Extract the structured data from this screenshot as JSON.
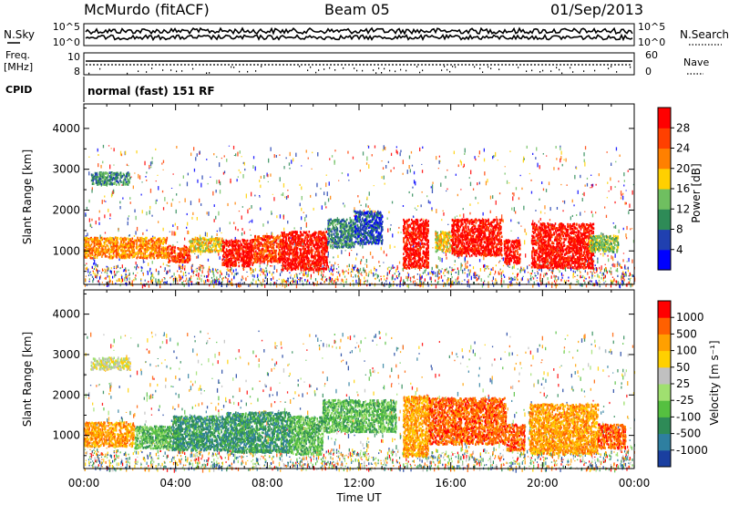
{
  "header": {
    "station": "McMurdo (fitACF)",
    "beam": "Beam 05",
    "date": "01/Sep/2013"
  },
  "top_panels": {
    "nsky_label": "N.Sky",
    "nsky_ticks": [
      "10^5",
      "10^0"
    ],
    "nsearch_label": "N.Search",
    "nsearch_ticks": [
      "10^5",
      "10^0"
    ],
    "freq_label_1": "Freq.",
    "freq_label_2": "[MHz]",
    "freq_ticks": [
      "10",
      "8"
    ],
    "nave_label": "Nave",
    "nave_ticks": [
      "60",
      "0"
    ],
    "cpid_label": "CPID",
    "cpid_value": "normal (fast) 151 RF"
  },
  "chart_data": [
    {
      "type": "heatmap",
      "name": "power",
      "ylabel": "Slant Range [km]",
      "ylim": [
        180,
        4600
      ],
      "yticks": [
        1000,
        2000,
        3000,
        4000
      ],
      "xlim": [
        0,
        24
      ],
      "colorbar": {
        "label": "Power [dB]",
        "ticks": [
          "4",
          "8",
          "12",
          "16",
          "20",
          "24",
          "28"
        ],
        "colors": [
          "#0000ff",
          "#2040b0",
          "#2e8b57",
          "#6fbf60",
          "#ffd000",
          "#ff8000",
          "#ff4000",
          "#ff0000"
        ]
      },
      "scatter_regions": [
        {
          "t0": 0.3,
          "t1": 2.0,
          "r0": 2650,
          "r1": 2950,
          "level": 2
        },
        {
          "t0": 0.0,
          "t1": 3.6,
          "r0": 850,
          "r1": 1350,
          "level": 5
        },
        {
          "t0": 3.6,
          "t1": 4.6,
          "r0": 750,
          "r1": 1150,
          "level": 6
        },
        {
          "t0": 4.6,
          "t1": 6.0,
          "r0": 1000,
          "r1": 1350,
          "level": 4
        },
        {
          "t0": 6.0,
          "t1": 7.4,
          "r0": 650,
          "r1": 1300,
          "level": 7
        },
        {
          "t0": 7.4,
          "t1": 8.6,
          "r0": 750,
          "r1": 1400,
          "level": 6
        },
        {
          "t0": 8.6,
          "t1": 10.6,
          "r0": 550,
          "r1": 1500,
          "level": 7
        },
        {
          "t0": 10.6,
          "t1": 11.8,
          "r0": 1100,
          "r1": 1800,
          "level": 2
        },
        {
          "t0": 11.8,
          "t1": 13.0,
          "r0": 1200,
          "r1": 2000,
          "level": 1
        },
        {
          "t0": 13.9,
          "t1": 15.0,
          "r0": 600,
          "r1": 1800,
          "level": 7
        },
        {
          "t0": 15.3,
          "t1": 16.0,
          "r0": 1000,
          "r1": 1500,
          "level": 4
        },
        {
          "t0": 16.0,
          "t1": 18.2,
          "r0": 900,
          "r1": 1800,
          "level": 7
        },
        {
          "t0": 18.3,
          "t1": 19.0,
          "r0": 700,
          "r1": 1300,
          "level": 7
        },
        {
          "t0": 19.5,
          "t1": 22.2,
          "r0": 600,
          "r1": 1700,
          "level": 7
        },
        {
          "t0": 22.0,
          "t1": 23.3,
          "r0": 1000,
          "r1": 1400,
          "level": 3
        }
      ]
    },
    {
      "type": "heatmap",
      "name": "velocity",
      "ylabel": "Slant Range [km]",
      "ylim": [
        180,
        4600
      ],
      "yticks": [
        1000,
        2000,
        3000,
        4000
      ],
      "xlim": [
        0,
        24
      ],
      "xlabel": "Time UT",
      "xticks": [
        "00:00",
        "04:00",
        "08:00",
        "12:00",
        "16:00",
        "20:00",
        "00:00"
      ],
      "colorbar": {
        "label": "Velocity [m s⁻¹]",
        "ticks": [
          "1000",
          "500",
          "100",
          "50",
          "25",
          "-25",
          "-100",
          "-500",
          "-1000"
        ],
        "colors": [
          "#1a3fa0",
          "#2e7fa0",
          "#2e8b57",
          "#55c040",
          "#a0e070",
          "#c0c0c0",
          "#ffd000",
          "#ffa000",
          "#ff6000",
          "#ff0000"
        ]
      },
      "scatter_regions": [
        {
          "t0": 0.3,
          "t1": 2.0,
          "r0": 2650,
          "r1": 2950,
          "level": 5
        },
        {
          "t0": 0.0,
          "t1": 2.2,
          "r0": 750,
          "r1": 1350,
          "level": 7
        },
        {
          "t0": 2.2,
          "t1": 3.8,
          "r0": 700,
          "r1": 1250,
          "level": 3
        },
        {
          "t0": 3.8,
          "t1": 6.2,
          "r0": 650,
          "r1": 1500,
          "level": 2
        },
        {
          "t0": 6.2,
          "t1": 9.0,
          "r0": 600,
          "r1": 1600,
          "level": 2
        },
        {
          "t0": 9.0,
          "t1": 10.4,
          "r0": 550,
          "r1": 1500,
          "level": 3
        },
        {
          "t0": 10.4,
          "t1": 13.6,
          "r0": 1100,
          "r1": 1900,
          "level": 3
        },
        {
          "t0": 13.9,
          "t1": 15.0,
          "r0": 500,
          "r1": 2000,
          "level": 7
        },
        {
          "t0": 15.0,
          "t1": 18.4,
          "r0": 800,
          "r1": 1950,
          "level": 8
        },
        {
          "t0": 18.4,
          "t1": 19.2,
          "r0": 650,
          "r1": 1300,
          "level": 8
        },
        {
          "t0": 19.4,
          "t1": 22.4,
          "r0": 550,
          "r1": 1800,
          "level": 7
        },
        {
          "t0": 22.4,
          "t1": 23.6,
          "r0": 700,
          "r1": 1300,
          "level": 8
        }
      ]
    }
  ]
}
